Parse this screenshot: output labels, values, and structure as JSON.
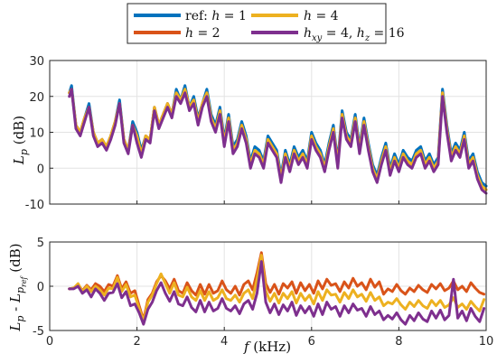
{
  "legend": {
    "items": [
      {
        "series": "ref",
        "label": "ref: h = 1",
        "color": "#0072BD"
      },
      {
        "series": "h4",
        "label": "h = 4",
        "color": "#EDB120"
      },
      {
        "series": "h2",
        "label": "h = 2",
        "color": "#D95319"
      },
      {
        "series": "hxy",
        "label": "hxy = 4, hz = 16",
        "color": "#7E2F8E"
      }
    ]
  },
  "chart_data": [
    {
      "type": "line",
      "panel": "top",
      "xlabel": "",
      "ylabel": "Lp (dB)",
      "xlim": [
        0,
        10
      ],
      "ylim": [
        -10,
        30
      ],
      "xticks": [
        0,
        2,
        4,
        6,
        8,
        10
      ],
      "yticks": [
        -10,
        0,
        10,
        20,
        30
      ],
      "xtick_labels": [
        "",
        "",
        "",
        "",
        "",
        ""
      ],
      "ytick_labels": [
        "-10",
        "0",
        "10",
        "20",
        "30"
      ],
      "grid": true,
      "x": [
        0.45,
        0.5,
        0.6,
        0.7,
        0.8,
        0.9,
        1.0,
        1.1,
        1.2,
        1.3,
        1.4,
        1.5,
        1.6,
        1.7,
        1.8,
        1.9,
        2.0,
        2.1,
        2.2,
        2.3,
        2.4,
        2.5,
        2.6,
        2.7,
        2.8,
        2.9,
        3.0,
        3.1,
        3.2,
        3.3,
        3.4,
        3.5,
        3.6,
        3.7,
        3.8,
        3.9,
        4.0,
        4.1,
        4.2,
        4.3,
        4.4,
        4.5,
        4.6,
        4.7,
        4.8,
        4.9,
        5.0,
        5.1,
        5.2,
        5.3,
        5.4,
        5.5,
        5.6,
        5.7,
        5.8,
        5.9,
        6.0,
        6.1,
        6.2,
        6.3,
        6.4,
        6.5,
        6.6,
        6.7,
        6.8,
        6.9,
        7.0,
        7.1,
        7.2,
        7.3,
        7.4,
        7.5,
        7.6,
        7.7,
        7.8,
        7.9,
        8.0,
        8.1,
        8.2,
        8.3,
        8.4,
        8.5,
        8.6,
        8.7,
        8.8,
        8.9,
        9.0,
        9.1,
        9.2,
        9.3,
        9.4,
        9.5,
        9.6,
        9.7,
        9.8,
        9.9,
        10.0
      ],
      "series": [
        {
          "name": "ref: h = 1",
          "color": "#0072BD",
          "values": [
            21,
            23,
            12,
            10,
            14,
            18,
            10,
            7,
            8,
            6,
            9,
            13,
            19,
            8,
            5,
            13,
            10,
            5,
            9,
            8,
            17,
            12,
            15,
            18,
            15,
            22,
            19,
            23,
            17,
            20,
            14,
            18,
            22,
            15,
            12,
            17,
            8,
            15,
            6,
            8,
            13,
            9,
            2,
            6,
            5,
            2,
            9,
            7,
            5,
            -2,
            5,
            1,
            6,
            3,
            5,
            2,
            10,
            7,
            5,
            1,
            7,
            12,
            2,
            16,
            10,
            8,
            15,
            6,
            14,
            7,
            1,
            -2,
            3,
            7,
            0,
            4,
            1,
            5,
            3,
            2,
            5,
            6,
            2,
            4,
            1,
            3,
            22,
            12,
            4,
            7,
            5,
            10,
            2,
            4,
            -1,
            -4,
            -5
          ]
        },
        {
          "name": "h = 2",
          "color": "#D95319",
          "values": [
            21,
            22,
            12,
            10,
            14,
            17,
            10,
            7,
            8,
            6,
            9,
            13,
            18,
            8,
            5,
            12,
            8,
            4,
            9,
            8,
            17,
            12,
            15,
            18,
            15,
            21,
            19,
            22,
            17,
            19,
            13,
            18,
            21,
            14,
            11,
            16,
            7,
            14,
            5,
            7,
            12,
            8,
            1,
            5,
            4,
            1,
            8,
            6,
            4,
            -3,
            4,
            0,
            5,
            2,
            4,
            1,
            9,
            6,
            4,
            0,
            6,
            11,
            1,
            15,
            9,
            7,
            14,
            5,
            13,
            6,
            0,
            -3,
            2,
            6,
            -1,
            3,
            0,
            4,
            2,
            1,
            4,
            5,
            1,
            3,
            0,
            2,
            21,
            11,
            3,
            6,
            4,
            9,
            1,
            3,
            -2,
            -5,
            -6
          ]
        },
        {
          "name": "h = 4",
          "color": "#EDB120",
          "values": [
            21,
            22,
            12,
            10,
            14,
            17,
            10,
            7,
            8,
            6,
            9,
            13,
            18,
            8,
            5,
            12,
            9,
            4,
            9,
            8,
            17,
            12,
            15,
            18,
            15,
            21,
            19,
            22,
            17,
            19,
            13,
            18,
            21,
            14,
            11,
            16,
            7,
            14,
            5,
            7,
            12,
            8,
            1,
            5,
            4,
            1,
            8,
            6,
            4,
            -3,
            4,
            0,
            5,
            2,
            4,
            1,
            9,
            6,
            4,
            0,
            6,
            11,
            1,
            15,
            9,
            7,
            14,
            5,
            13,
            6,
            0,
            -3,
            2,
            6,
            -1,
            3,
            0,
            4,
            2,
            1,
            4,
            5,
            1,
            3,
            0,
            2,
            21,
            11,
            3,
            6,
            4,
            9,
            1,
            3,
            -2,
            -5,
            -6
          ]
        },
        {
          "name": "hxy = 4, hz = 16",
          "color": "#7E2F8E",
          "values": [
            20,
            22,
            11,
            9,
            13,
            17,
            9,
            6,
            7,
            5,
            8,
            12,
            18,
            7,
            4,
            12,
            7,
            3,
            8,
            7,
            16,
            11,
            14,
            17,
            14,
            20,
            18,
            21,
            16,
            18,
            12,
            17,
            20,
            13,
            10,
            15,
            6,
            13,
            4,
            6,
            11,
            7,
            0,
            4,
            3,
            0,
            7,
            5,
            3,
            -4,
            3,
            -1,
            4,
            1,
            3,
            0,
            8,
            5,
            3,
            -1,
            5,
            10,
            0,
            14,
            8,
            6,
            13,
            4,
            12,
            5,
            -1,
            -4,
            1,
            5,
            -2,
            2,
            -1,
            3,
            1,
            0,
            3,
            4,
            0,
            2,
            -1,
            1,
            20,
            10,
            2,
            5,
            3,
            8,
            0,
            2,
            -3,
            -6,
            -7
          ]
        }
      ]
    },
    {
      "type": "line",
      "panel": "bottom",
      "xlabel": "f (kHz)",
      "ylabel": "Lp - Lpref (dB)",
      "xlim": [
        0,
        10
      ],
      "ylim": [
        -5,
        5
      ],
      "xticks": [
        0,
        2,
        4,
        6,
        8,
        10
      ],
      "yticks": [
        -5,
        0,
        5
      ],
      "xtick_labels": [
        "0",
        "2",
        "4",
        "6",
        "8",
        "10"
      ],
      "ytick_labels": [
        "-5",
        "0",
        "5"
      ],
      "grid": true,
      "x": [
        0.45,
        0.55,
        0.65,
        0.75,
        0.85,
        0.95,
        1.05,
        1.15,
        1.25,
        1.35,
        1.45,
        1.55,
        1.65,
        1.75,
        1.85,
        1.95,
        2.05,
        2.15,
        2.25,
        2.35,
        2.45,
        2.55,
        2.65,
        2.75,
        2.85,
        2.95,
        3.05,
        3.15,
        3.25,
        3.35,
        3.45,
        3.55,
        3.65,
        3.75,
        3.85,
        3.95,
        4.05,
        4.15,
        4.25,
        4.35,
        4.45,
        4.55,
        4.65,
        4.75,
        4.85,
        4.95,
        5.05,
        5.15,
        5.25,
        5.35,
        5.45,
        5.55,
        5.65,
        5.75,
        5.85,
        5.95,
        6.05,
        6.15,
        6.25,
        6.35,
        6.45,
        6.55,
        6.65,
        6.75,
        6.85,
        6.95,
        7.05,
        7.15,
        7.25,
        7.35,
        7.45,
        7.55,
        7.65,
        7.75,
        7.85,
        7.95,
        8.05,
        8.15,
        8.25,
        8.35,
        8.45,
        8.55,
        8.65,
        8.75,
        8.85,
        8.95,
        9.05,
        9.15,
        9.25,
        9.35,
        9.45,
        9.55,
        9.65,
        9.75,
        9.85,
        9.95
      ],
      "series": [
        {
          "name": "h = 2",
          "color": "#D95319",
          "values": [
            -0.3,
            -0.2,
            0.2,
            -0.5,
            0.1,
            -0.4,
            0.3,
            0.0,
            -0.6,
            0.2,
            0.0,
            1.2,
            -0.3,
            0.5,
            -0.8,
            -0.5,
            -2.2,
            -3.8,
            -1.5,
            -0.8,
            0.5,
            1.2,
            0.6,
            -0.3,
            0.8,
            -0.5,
            -0.8,
            0.4,
            -0.5,
            -1.0,
            0.2,
            -0.9,
            0.2,
            -0.8,
            -0.5,
            0.6,
            -0.4,
            -0.8,
            0.0,
            -1.0,
            0.2,
            0.6,
            -0.4,
            1.5,
            3.8,
            0.3,
            -0.7,
            0.2,
            -0.9,
            0.3,
            -0.2,
            0.5,
            -0.8,
            0.4,
            -0.5,
            0.2,
            -0.8,
            0.6,
            -0.3,
            0.8,
            0.1,
            0.3,
            -0.6,
            0.5,
            -0.2,
            0.9,
            0.0,
            0.4,
            -0.4,
            0.8,
            -0.1,
            0.5,
            -0.9,
            -0.3,
            -0.6,
            0.2,
            -0.5,
            -0.9,
            -0.2,
            -0.6,
            0.1,
            -0.4,
            -0.7,
            0.2,
            -0.3,
            0.3,
            -0.5,
            -0.2,
            0.6,
            -0.4,
            0.0,
            -0.6,
            0.4,
            -0.2,
            -0.7,
            -0.9
          ]
        },
        {
          "name": "h = 4",
          "color": "#EDB120",
          "values": [
            -0.3,
            -0.2,
            0.3,
            -0.6,
            0.0,
            -0.6,
            0.0,
            -0.4,
            -1.0,
            -0.2,
            -0.3,
            1.0,
            -0.6,
            0.2,
            -1.2,
            -1.0,
            -2.5,
            -4.0,
            -1.8,
            -1.0,
            0.3,
            1.4,
            0.3,
            -0.8,
            0.4,
            -1.0,
            -1.2,
            -0.1,
            -1.2,
            -1.6,
            -0.5,
            -1.6,
            -0.6,
            -1.6,
            -1.3,
            -0.4,
            -1.4,
            -1.6,
            -1.0,
            -1.8,
            -0.8,
            -0.4,
            -1.4,
            0.8,
            3.5,
            -0.5,
            -1.7,
            -0.8,
            -1.9,
            -0.8,
            -1.4,
            -0.6,
            -1.9,
            -0.8,
            -1.6,
            -1.0,
            -2.0,
            -0.6,
            -1.6,
            -0.4,
            -1.0,
            -0.9,
            -1.8,
            -0.7,
            -1.4,
            -0.4,
            -1.2,
            -0.9,
            -1.7,
            -0.7,
            -1.6,
            -1.2,
            -2.2,
            -1.8,
            -2.0,
            -1.4,
            -2.1,
            -2.6,
            -1.8,
            -2.3,
            -1.6,
            -2.2,
            -2.5,
            -1.6,
            -2.2,
            -1.6,
            -2.4,
            -2.1,
            -1.3,
            -2.4,
            -2.0,
            -2.6,
            -1.7,
            -2.3,
            -2.8,
            -1.5
          ]
        },
        {
          "name": "hxy = 4, hz = 16",
          "color": "#7E2F8E",
          "values": [
            -0.3,
            -0.3,
            0.0,
            -0.8,
            -0.4,
            -1.2,
            -0.3,
            -0.8,
            -1.6,
            -0.8,
            -0.7,
            0.3,
            -1.3,
            -0.6,
            -2.2,
            -2.0,
            -3.0,
            -4.3,
            -2.6,
            -1.8,
            -0.5,
            0.4,
            -0.8,
            -1.7,
            -0.6,
            -2.0,
            -2.2,
            -1.2,
            -2.4,
            -2.9,
            -1.6,
            -2.9,
            -1.8,
            -2.8,
            -2.5,
            -1.4,
            -2.5,
            -2.8,
            -2.2,
            -3.1,
            -2.0,
            -1.6,
            -2.6,
            -0.8,
            2.8,
            -1.8,
            -3.0,
            -2.0,
            -3.2,
            -2.1,
            -2.8,
            -1.8,
            -3.3,
            -2.2,
            -3.0,
            -2.3,
            -3.4,
            -2.0,
            -3.2,
            -1.8,
            -2.6,
            -2.3,
            -3.4,
            -2.2,
            -3.0,
            -2.0,
            -2.7,
            -2.5,
            -3.4,
            -2.3,
            -3.2,
            -2.8,
            -3.8,
            -3.3,
            -3.7,
            -3.0,
            -3.8,
            -4.3,
            -3.3,
            -3.9,
            -3.0,
            -3.7,
            -4.0,
            -2.8,
            -3.6,
            -2.7,
            -3.8,
            -3.3,
            0.8,
            -3.6,
            -2.8,
            -3.9,
            -2.5,
            -3.4,
            -4.0,
            -2.5
          ]
        }
      ]
    }
  ]
}
